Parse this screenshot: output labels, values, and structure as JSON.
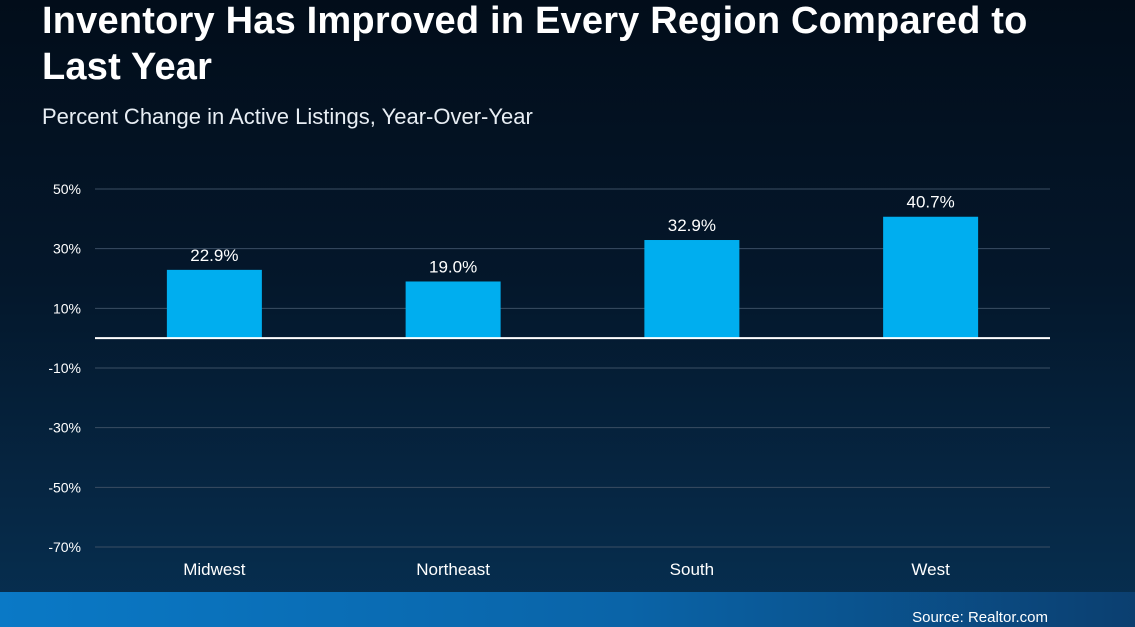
{
  "title": "Inventory Has Improved in Every Region Compared to Last Year",
  "subtitle": "Percent Change in Active Listings, Year-Over-Year",
  "source": "Source: Realtor.com",
  "colors": {
    "bar": "#00aeef",
    "gridline": "#3a4e63",
    "zero_line": "#ffffff",
    "footer": "#0a79c6"
  },
  "chart_data": {
    "type": "bar",
    "categories": [
      "Midwest",
      "Northeast",
      "South",
      "West"
    ],
    "values": [
      22.9,
      19.0,
      32.9,
      40.7
    ],
    "data_labels": [
      "22.9%",
      "19.0%",
      "32.9%",
      "40.7%"
    ],
    "ylim": [
      -70,
      50
    ],
    "yticks": [
      50,
      30,
      10,
      -10,
      -30,
      -50,
      -70
    ],
    "ytick_labels": [
      "50%",
      "30%",
      "10%",
      "-10%",
      "-30%",
      "-50%",
      "-70%"
    ],
    "grid": true,
    "xlabel": "",
    "ylabel": ""
  }
}
